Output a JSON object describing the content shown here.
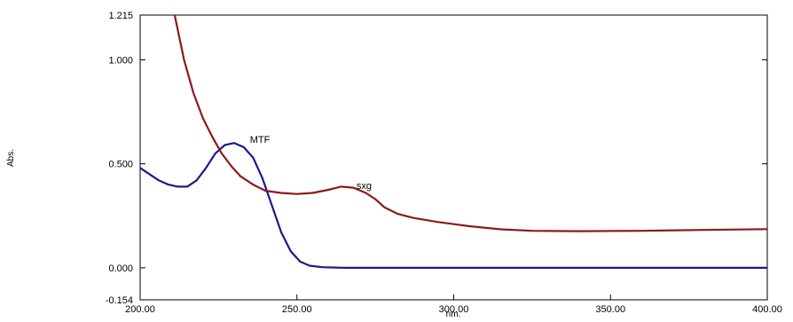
{
  "chart_data": {
    "type": "line",
    "title": "",
    "xlabel": "nm.",
    "ylabel": "Abs.",
    "xlim": [
      200,
      400
    ],
    "ylim": [
      -0.154,
      1.215
    ],
    "x_ticks": [
      200,
      250,
      300,
      350,
      400
    ],
    "x_tick_labels": [
      "200.00",
      "250.00",
      "300.00",
      "350.00",
      "400.00"
    ],
    "y_ticks": [
      -0.154,
      0,
      0.5,
      1.0,
      1.215
    ],
    "y_tick_labels": [
      "-0.154",
      "0.000",
      "0.500",
      "1.000",
      "1.215"
    ],
    "grid": false,
    "legend": "none",
    "series": [
      {
        "name": "MTF",
        "color": "#1a1a8c",
        "label_at": [
          235,
          0.6
        ],
        "points": [
          [
            200,
            0.48
          ],
          [
            203,
            0.45
          ],
          [
            206,
            0.42
          ],
          [
            209,
            0.4
          ],
          [
            212,
            0.39
          ],
          [
            215,
            0.39
          ],
          [
            218,
            0.42
          ],
          [
            221,
            0.48
          ],
          [
            224,
            0.55
          ],
          [
            227,
            0.59
          ],
          [
            230,
            0.6
          ],
          [
            233,
            0.58
          ],
          [
            236,
            0.53
          ],
          [
            239,
            0.43
          ],
          [
            242,
            0.3
          ],
          [
            245,
            0.17
          ],
          [
            248,
            0.08
          ],
          [
            251,
            0.03
          ],
          [
            254,
            0.01
          ],
          [
            258,
            0.003
          ],
          [
            265,
            0.0
          ],
          [
            300,
            0.0
          ],
          [
            350,
            0.0
          ],
          [
            400,
            0.0
          ]
        ]
      },
      {
        "name": "sxg",
        "color": "#8b1a1a",
        "label_at": [
          269,
          0.38
        ],
        "points": [
          [
            211,
            1.215
          ],
          [
            214,
            1.0
          ],
          [
            217,
            0.84
          ],
          [
            220,
            0.72
          ],
          [
            223,
            0.63
          ],
          [
            226,
            0.55
          ],
          [
            229,
            0.49
          ],
          [
            232,
            0.44
          ],
          [
            236,
            0.4
          ],
          [
            240,
            0.37
          ],
          [
            245,
            0.36
          ],
          [
            250,
            0.355
          ],
          [
            255,
            0.36
          ],
          [
            260,
            0.375
          ],
          [
            264,
            0.39
          ],
          [
            268,
            0.385
          ],
          [
            272,
            0.36
          ],
          [
            275,
            0.33
          ],
          [
            278,
            0.29
          ],
          [
            282,
            0.26
          ],
          [
            287,
            0.24
          ],
          [
            295,
            0.22
          ],
          [
            305,
            0.2
          ],
          [
            315,
            0.185
          ],
          [
            325,
            0.178
          ],
          [
            340,
            0.176
          ],
          [
            360,
            0.178
          ],
          [
            380,
            0.182
          ],
          [
            400,
            0.186
          ]
        ]
      }
    ]
  }
}
